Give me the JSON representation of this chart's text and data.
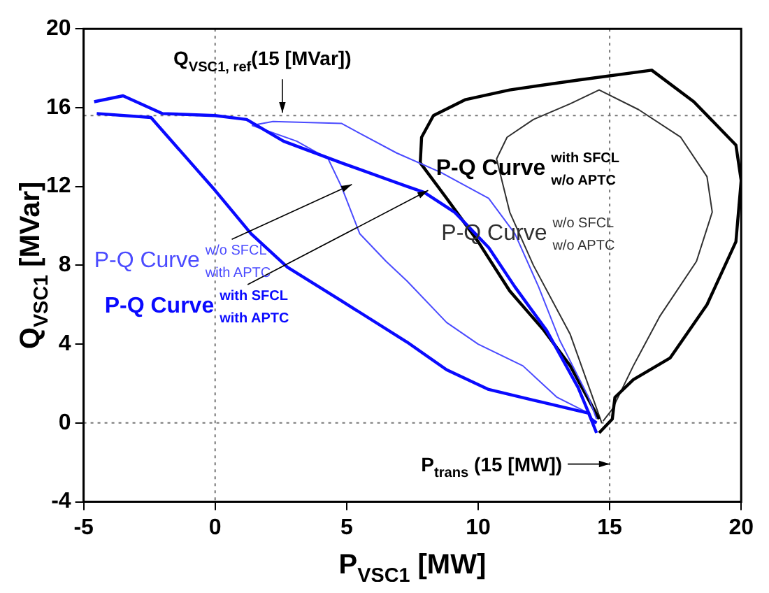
{
  "chart_data": {
    "type": "line",
    "xlabel": "P$_{VSC1}$ [MW]",
    "ylabel": "Q$_{VSC1}$ [MVar]",
    "xlim": [
      -5,
      20
    ],
    "ylim": [
      -4,
      20
    ],
    "xticks": [
      -5,
      0,
      5,
      10,
      15,
      20
    ],
    "yticks": [
      -4,
      0,
      4,
      8,
      12,
      16,
      20
    ],
    "grid": false,
    "legend": false,
    "marker": "none",
    "line_style": "solid",
    "series": [
      {
        "name": "P-Q Curve with SFCL with APTC",
        "color": "#0a0aff",
        "x": [
          14.5,
          14.3,
          13.8,
          12.6,
          11.4,
          10.4,
          9.1,
          7.95,
          7.3,
          4.8,
          2.6,
          1.2,
          0,
          -2,
          -3.5,
          -4.6
        ],
        "values": [
          0,
          0.2,
          1.8,
          4.7,
          6.9,
          8.9,
          10.7,
          11.7,
          12,
          13.2,
          14.3,
          15.4,
          15.6,
          15.7,
          16.6,
          16.3
        ]
      },
      {
        "color": "#0a0aff",
        "x": [
          -4.5,
          -2.44,
          0,
          1.37,
          2.75,
          4.8,
          7.3,
          8.8,
          10.4,
          12.6,
          14.2,
          14.5
        ],
        "values": [
          15.7,
          15.5,
          11.8,
          9.6,
          7.9,
          6.2,
          4.1,
          2.7,
          1.7,
          1,
          0.5,
          -0.5
        ]
      },
      {
        "name": "P-Q Curve w/o SFCL with APTC",
        "color": "#4b4bff",
        "x": [
          14.5,
          14.2,
          13.1,
          12.3,
          11.4,
          10.4,
          8.6,
          6.9,
          4.8,
          2.2,
          1.4
        ],
        "values": [
          0.2,
          1.3,
          4.2,
          6.9,
          9.6,
          11.4,
          12.7,
          13.7,
          15.2,
          15.3,
          15.1
        ]
      },
      {
        "color": "#4b4bff",
        "x": [
          1.4,
          3.1,
          4.3,
          4.8,
          5.5,
          6.5,
          7.3,
          8.8,
          10,
          11.7,
          13,
          14.2
        ],
        "values": [
          15.1,
          14.3,
          13.4,
          12,
          9.6,
          8.2,
          7.2,
          5.1,
          4,
          2.9,
          1.3,
          0.5
        ]
      },
      {
        "name": "P-Q Curve with SFCL w/o APTC",
        "color": "#000000",
        "x": [
          14.6,
          13.5,
          12.5,
          11.2,
          10,
          8.8,
          7.8,
          7.85,
          8.3,
          9.5,
          11.2,
          13.8,
          16.6,
          18.2,
          19.8,
          20,
          19.8,
          18.7,
          17.3,
          15.9,
          15.2,
          15.1,
          14.6
        ],
        "values": [
          0.2,
          2.9,
          4.7,
          6.7,
          9.2,
          11.4,
          13.2,
          14.5,
          15.6,
          16.4,
          16.9,
          17.4,
          17.9,
          16.3,
          14.1,
          12.3,
          9.2,
          6,
          3.3,
          2.2,
          1.3,
          0.2,
          -0.5
        ]
      },
      {
        "name": "P-Q Curve w/o SFCL w/o APTC",
        "color": "#303030",
        "x": [
          14.7,
          13.5,
          12.1,
          11.2,
          10.7,
          11.1,
          12.1,
          13.5,
          14.6,
          16.1,
          17.7,
          18.7,
          18.9,
          18.3,
          16.9,
          15.9,
          15.1,
          14.75
        ],
        "values": [
          0,
          4.5,
          8,
          10.7,
          13.4,
          14.5,
          15.4,
          16.2,
          16.9,
          15.9,
          14.5,
          12.5,
          10.7,
          8.2,
          5.4,
          2.9,
          0.7,
          0.1
        ]
      }
    ],
    "ref_lines": [
      {
        "axis": "y",
        "value": 15.6,
        "label": "Q$_{VSC1, ref}$(15 [MVar])",
        "line_style": "dotted",
        "color": "#777777"
      },
      {
        "axis": "x",
        "value": 15,
        "label": "P$_{trans}$ (15 [MW])",
        "line_style": "dotted",
        "color": "#777777"
      },
      {
        "axis": "x",
        "value": 0,
        "line_style": "dotted",
        "color": "#777777"
      },
      {
        "axis": "y",
        "value": 0,
        "line_style": "dotted",
        "color": "#777777"
      }
    ]
  }
}
